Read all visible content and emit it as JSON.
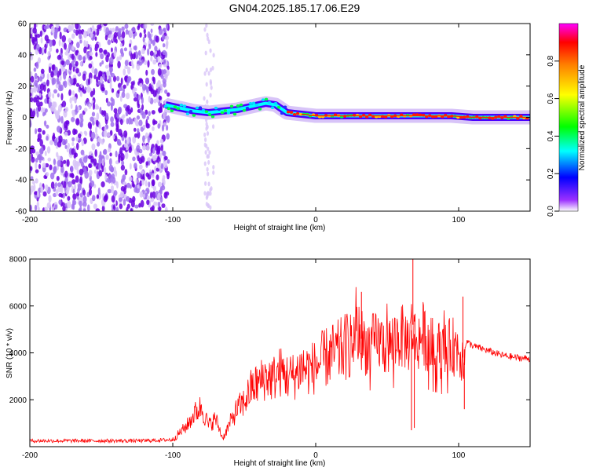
{
  "title": "GN04.2025.185.17.06.E29",
  "chart_data": [
    {
      "type": "heatmap",
      "xlabel": "Height of straight line (km)",
      "ylabel": "Frequency (Hz)",
      "xlim": [
        -200,
        150
      ],
      "ylim": [
        -60,
        60
      ],
      "xticks": [
        -200,
        -100,
        0,
        100
      ],
      "yticks": [
        -60,
        -40,
        -20,
        0,
        20,
        40,
        60
      ],
      "grid": false,
      "colorbar": {
        "label": "Normalized spectral amplitude",
        "range": [
          0.0,
          1.0
        ],
        "ticks": [
          0.0,
          0.2,
          0.4,
          0.6,
          0.8
        ],
        "colors": [
          "#ffffff",
          "#8000ff",
          "#0000ff",
          "#00ffff",
          "#00ff00",
          "#ffff00",
          "#ff8000",
          "#ff0000",
          "#ff00ff"
        ]
      },
      "ridge": [
        {
          "x": -105,
          "y": 8
        },
        {
          "x": -95,
          "y": 6
        },
        {
          "x": -85,
          "y": 4
        },
        {
          "x": -75,
          "y": 3
        },
        {
          "x": -65,
          "y": 4
        },
        {
          "x": -55,
          "y": 5
        },
        {
          "x": -45,
          "y": 7
        },
        {
          "x": -35,
          "y": 9
        },
        {
          "x": -28,
          "y": 8
        },
        {
          "x": -20,
          "y": 3
        },
        {
          "x": -10,
          "y": 2
        },
        {
          "x": 0,
          "y": 1
        },
        {
          "x": 20,
          "y": 1
        },
        {
          "x": 40,
          "y": 1
        },
        {
          "x": 60,
          "y": 1
        },
        {
          "x": 80,
          "y": 1
        },
        {
          "x": 95,
          "y": 1
        },
        {
          "x": 110,
          "y": 0
        },
        {
          "x": 130,
          "y": 0
        },
        {
          "x": 150,
          "y": 0
        }
      ]
    },
    {
      "type": "line",
      "xlabel": "Height of straight line (km)",
      "ylabel": "SNR (10 * v/v)",
      "xlim": [
        -200,
        150
      ],
      "ylim": [
        0,
        8000
      ],
      "xticks": [
        -200,
        -100,
        0,
        100
      ],
      "yticks": [
        2000,
        4000,
        6000,
        8000
      ],
      "grid": false,
      "series": [
        {
          "color": "#ff0000",
          "x": [
            -200,
            -180,
            -160,
            -140,
            -120,
            -100,
            -90,
            -85,
            -80,
            -75,
            -70,
            -65,
            -60,
            -55,
            -50,
            -45,
            -40,
            -35,
            -30,
            -25,
            -20,
            -15,
            -10,
            -5,
            0,
            5,
            10,
            15,
            20,
            25,
            30,
            35,
            40,
            45,
            50,
            55,
            60,
            65,
            68,
            70,
            75,
            80,
            85,
            90,
            95,
            100,
            103,
            105,
            110,
            120,
            130,
            140,
            150
          ],
          "y": [
            250,
            250,
            250,
            250,
            250,
            300,
            900,
            1400,
            1700,
            900,
            1200,
            350,
            1000,
            1600,
            1900,
            2500,
            2700,
            3000,
            2900,
            3200,
            3000,
            3000,
            3400,
            3300,
            3400,
            3700,
            3900,
            4000,
            4200,
            4500,
            4800,
            4300,
            4400,
            4500,
            4200,
            4600,
            4700,
            4500,
            5200,
            4400,
            4800,
            4300,
            4200,
            4000,
            4300,
            4200,
            3800,
            4500,
            4300,
            4100,
            3900,
            3800,
            3750
          ]
        }
      ]
    }
  ]
}
